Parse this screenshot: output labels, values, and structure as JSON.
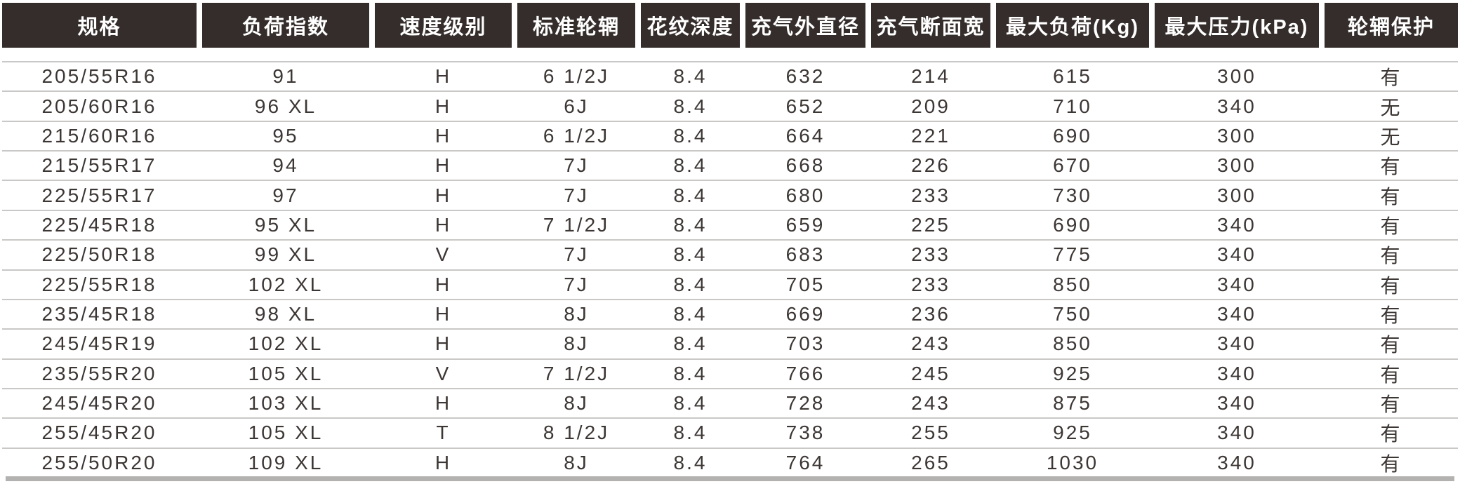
{
  "table": {
    "columns": [
      "规格",
      "负荷指数",
      "速度级别",
      "标准轮辋",
      "花纹深度",
      "充气外直径",
      "充气断面宽",
      "最大负荷(Kg)",
      "最大压力(kPa)",
      "轮辋保护"
    ],
    "rows": [
      [
        "205/55R16",
        "91",
        "H",
        "6 1/2J",
        "8.4",
        "632",
        "214",
        "615",
        "300",
        "有"
      ],
      [
        "205/60R16",
        "96 XL",
        "H",
        "6J",
        "8.4",
        "652",
        "209",
        "710",
        "340",
        "无"
      ],
      [
        "215/60R16",
        "95",
        "H",
        "6 1/2J",
        "8.4",
        "664",
        "221",
        "690",
        "300",
        "无"
      ],
      [
        "215/55R17",
        "94",
        "H",
        "7J",
        "8.4",
        "668",
        "226",
        "670",
        "300",
        "有"
      ],
      [
        "225/55R17",
        "97",
        "H",
        "7J",
        "8.4",
        "680",
        "233",
        "730",
        "300",
        "有"
      ],
      [
        "225/45R18",
        "95 XL",
        "H",
        "7 1/2J",
        "8.4",
        "659",
        "225",
        "690",
        "340",
        "有"
      ],
      [
        "225/50R18",
        "99 XL",
        "V",
        "7J",
        "8.4",
        "683",
        "233",
        "775",
        "340",
        "有"
      ],
      [
        "225/55R18",
        "102 XL",
        "H",
        "7J",
        "8.4",
        "705",
        "233",
        "850",
        "340",
        "有"
      ],
      [
        "235/45R18",
        "98 XL",
        "H",
        "8J",
        "8.4",
        "669",
        "236",
        "750",
        "340",
        "有"
      ],
      [
        "245/45R19",
        "102 XL",
        "H",
        "8J",
        "8.4",
        "703",
        "243",
        "850",
        "340",
        "有"
      ],
      [
        "235/55R20",
        "105 XL",
        "V",
        "7 1/2J",
        "8.4",
        "766",
        "245",
        "925",
        "340",
        "有"
      ],
      [
        "245/45R20",
        "103 XL",
        "H",
        "8J",
        "8.4",
        "728",
        "243",
        "875",
        "340",
        "有"
      ],
      [
        "255/45R20",
        "105 XL",
        "T",
        "8 1/2J",
        "8.4",
        "738",
        "255",
        "925",
        "340",
        "有"
      ],
      [
        "255/50R20",
        "109 XL",
        "H",
        "8J",
        "8.4",
        "764",
        "265",
        "1030",
        "340",
        "有"
      ]
    ]
  },
  "colors": {
    "header_bg": "#342d2b",
    "header_text": "#ffffff",
    "body_text": "#3c3634",
    "row_line": "#c9c8c7",
    "bottom_bar": "#b3b2b1"
  }
}
